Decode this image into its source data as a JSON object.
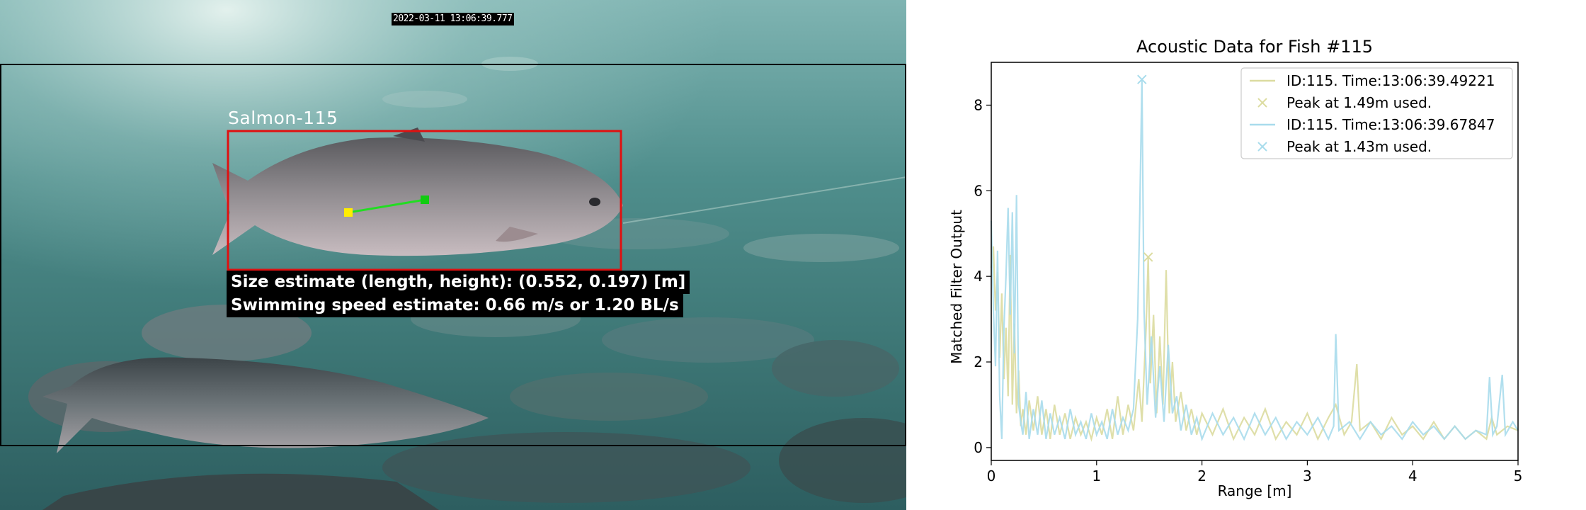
{
  "photo": {
    "timestamp": "2022-03-11 13:06:39.777",
    "detection_label": "Salmon-115",
    "size_estimate": "Size estimate (length, height): (0.552, 0.197) [m]",
    "speed_estimate": "Swimming speed estimate: 0.66 m/s or 1.20 BL/s",
    "colors": {
      "roi_box": "#000000",
      "detection_box": "#e01010",
      "speed_vector": "#22dd22",
      "vector_start": "#ffee00",
      "vector_end": "#11cc11"
    }
  },
  "chart_data": {
    "type": "line",
    "title": "Acoustic Data for Fish #115",
    "xlabel": "Range [m]",
    "ylabel": "Matched Filter Output",
    "xlim": [
      0,
      5
    ],
    "ylim": [
      -0.3,
      9.0
    ],
    "xticks": [
      "0",
      "1",
      "2",
      "3",
      "4",
      "5"
    ],
    "yticks": [
      "0",
      "2",
      "4",
      "6",
      "8"
    ],
    "grid": false,
    "legend_position": "top-right",
    "series": [
      {
        "name": "ID:115. Time:13:06:39.49221",
        "color": "#dcdca0",
        "peak": {
          "x": 1.49,
          "y": 4.45,
          "label": "Peak at 1.49m used."
        },
        "points": [
          [
            0,
            4.2
          ],
          [
            0.02,
            4.7
          ],
          [
            0.04,
            3.2
          ],
          [
            0.06,
            4.1
          ],
          [
            0.08,
            2.1
          ],
          [
            0.1,
            3.6
          ],
          [
            0.12,
            1.6
          ],
          [
            0.14,
            2.8
          ],
          [
            0.16,
            1.2
          ],
          [
            0.18,
            4.5
          ],
          [
            0.2,
            1.0
          ],
          [
            0.22,
            2.9
          ],
          [
            0.24,
            0.8
          ],
          [
            0.26,
            1.8
          ],
          [
            0.28,
            0.5
          ],
          [
            0.3,
            0.9
          ],
          [
            0.33,
            0.3
          ],
          [
            0.36,
            1.1
          ],
          [
            0.4,
            0.4
          ],
          [
            0.44,
            1.2
          ],
          [
            0.48,
            0.3
          ],
          [
            0.52,
            0.9
          ],
          [
            0.56,
            0.2
          ],
          [
            0.6,
            1.0
          ],
          [
            0.65,
            0.3
          ],
          [
            0.7,
            0.8
          ],
          [
            0.75,
            0.2
          ],
          [
            0.8,
            0.7
          ],
          [
            0.85,
            0.3
          ],
          [
            0.9,
            0.6
          ],
          [
            0.95,
            0.2
          ],
          [
            1.0,
            0.7
          ],
          [
            1.05,
            0.3
          ],
          [
            1.1,
            0.9
          ],
          [
            1.15,
            0.2
          ],
          [
            1.2,
            1.2
          ],
          [
            1.25,
            0.3
          ],
          [
            1.3,
            1.0
          ],
          [
            1.35,
            0.4
          ],
          [
            1.4,
            1.6
          ],
          [
            1.43,
            0.6
          ],
          [
            1.47,
            2.8
          ],
          [
            1.49,
            4.45
          ],
          [
            1.51,
            1.5
          ],
          [
            1.54,
            3.1
          ],
          [
            1.57,
            0.8
          ],
          [
            1.6,
            2.6
          ],
          [
            1.63,
            1.0
          ],
          [
            1.66,
            4.15
          ],
          [
            1.69,
            0.8
          ],
          [
            1.72,
            2.0
          ],
          [
            1.75,
            0.6
          ],
          [
            1.8,
            1.3
          ],
          [
            1.85,
            0.4
          ],
          [
            1.9,
            0.9
          ],
          [
            1.95,
            0.3
          ],
          [
            2.0,
            0.8
          ],
          [
            2.1,
            0.3
          ],
          [
            2.2,
            0.9
          ],
          [
            2.3,
            0.2
          ],
          [
            2.4,
            0.7
          ],
          [
            2.5,
            0.3
          ],
          [
            2.6,
            0.9
          ],
          [
            2.7,
            0.2
          ],
          [
            2.8,
            0.6
          ],
          [
            2.9,
            0.3
          ],
          [
            3.0,
            0.8
          ],
          [
            3.1,
            0.2
          ],
          [
            3.2,
            0.7
          ],
          [
            3.27,
            1.0
          ],
          [
            3.35,
            0.3
          ],
          [
            3.42,
            0.6
          ],
          [
            3.47,
            1.95
          ],
          [
            3.5,
            0.4
          ],
          [
            3.6,
            0.6
          ],
          [
            3.7,
            0.2
          ],
          [
            3.8,
            0.7
          ],
          [
            3.9,
            0.3
          ],
          [
            4.0,
            0.5
          ],
          [
            4.1,
            0.2
          ],
          [
            4.2,
            0.6
          ],
          [
            4.3,
            0.2
          ],
          [
            4.4,
            0.5
          ],
          [
            4.5,
            0.2
          ],
          [
            4.6,
            0.4
          ],
          [
            4.7,
            0.2
          ],
          [
            4.75,
            0.7
          ],
          [
            4.8,
            0.3
          ],
          [
            4.9,
            0.5
          ],
          [
            5.0,
            0.4
          ]
        ]
      },
      {
        "name": "ID:115. Time:13:06:39.67847",
        "color": "#a8dcec",
        "peak": {
          "x": 1.43,
          "y": 8.6,
          "label": "Peak at 1.43m used."
        },
        "points": [
          [
            0,
            5.3
          ],
          [
            0.02,
            3.2
          ],
          [
            0.04,
            1.9
          ],
          [
            0.06,
            4.6
          ],
          [
            0.08,
            1.2
          ],
          [
            0.1,
            0.2
          ],
          [
            0.12,
            2.8
          ],
          [
            0.14,
            4.0
          ],
          [
            0.16,
            5.6
          ],
          [
            0.18,
            3.1
          ],
          [
            0.2,
            5.5
          ],
          [
            0.22,
            2.2
          ],
          [
            0.24,
            5.9
          ],
          [
            0.26,
            1.0
          ],
          [
            0.28,
            0.6
          ],
          [
            0.3,
            0.3
          ],
          [
            0.33,
            1.3
          ],
          [
            0.36,
            0.2
          ],
          [
            0.4,
            0.9
          ],
          [
            0.44,
            0.3
          ],
          [
            0.48,
            1.1
          ],
          [
            0.52,
            0.2
          ],
          [
            0.56,
            0.8
          ],
          [
            0.6,
            0.3
          ],
          [
            0.65,
            0.7
          ],
          [
            0.7,
            0.2
          ],
          [
            0.75,
            0.9
          ],
          [
            0.8,
            0.3
          ],
          [
            0.85,
            0.6
          ],
          [
            0.9,
            0.2
          ],
          [
            0.95,
            0.8
          ],
          [
            1.0,
            0.3
          ],
          [
            1.05,
            0.6
          ],
          [
            1.1,
            0.2
          ],
          [
            1.15,
            0.9
          ],
          [
            1.2,
            0.3
          ],
          [
            1.25,
            0.7
          ],
          [
            1.3,
            0.4
          ],
          [
            1.35,
            0.9
          ],
          [
            1.39,
            3.0
          ],
          [
            1.41,
            5.5
          ],
          [
            1.43,
            8.6
          ],
          [
            1.45,
            3.2
          ],
          [
            1.48,
            1.0
          ],
          [
            1.52,
            2.6
          ],
          [
            1.56,
            0.7
          ],
          [
            1.6,
            1.9
          ],
          [
            1.64,
            0.6
          ],
          [
            1.68,
            2.4
          ],
          [
            1.72,
            0.8
          ],
          [
            1.76,
            1.2
          ],
          [
            1.8,
            0.4
          ],
          [
            1.85,
            1.0
          ],
          [
            1.9,
            0.3
          ],
          [
            1.95,
            0.7
          ],
          [
            2.0,
            0.2
          ],
          [
            2.1,
            0.8
          ],
          [
            2.2,
            0.3
          ],
          [
            2.3,
            0.7
          ],
          [
            2.4,
            0.2
          ],
          [
            2.5,
            0.8
          ],
          [
            2.6,
            0.3
          ],
          [
            2.7,
            0.7
          ],
          [
            2.8,
            0.2
          ],
          [
            2.9,
            0.6
          ],
          [
            3.0,
            0.3
          ],
          [
            3.1,
            0.7
          ],
          [
            3.2,
            0.2
          ],
          [
            3.25,
            0.5
          ],
          [
            3.27,
            2.65
          ],
          [
            3.3,
            0.4
          ],
          [
            3.4,
            0.6
          ],
          [
            3.5,
            0.2
          ],
          [
            3.6,
            0.6
          ],
          [
            3.7,
            0.3
          ],
          [
            3.8,
            0.5
          ],
          [
            3.9,
            0.2
          ],
          [
            4.0,
            0.6
          ],
          [
            4.1,
            0.3
          ],
          [
            4.2,
            0.5
          ],
          [
            4.3,
            0.2
          ],
          [
            4.4,
            0.5
          ],
          [
            4.5,
            0.2
          ],
          [
            4.6,
            0.4
          ],
          [
            4.7,
            0.3
          ],
          [
            4.73,
            1.65
          ],
          [
            4.76,
            0.3
          ],
          [
            4.8,
            0.5
          ],
          [
            4.85,
            1.7
          ],
          [
            4.88,
            0.3
          ],
          [
            4.95,
            0.6
          ],
          [
            5.0,
            0.4
          ]
        ]
      }
    ]
  }
}
